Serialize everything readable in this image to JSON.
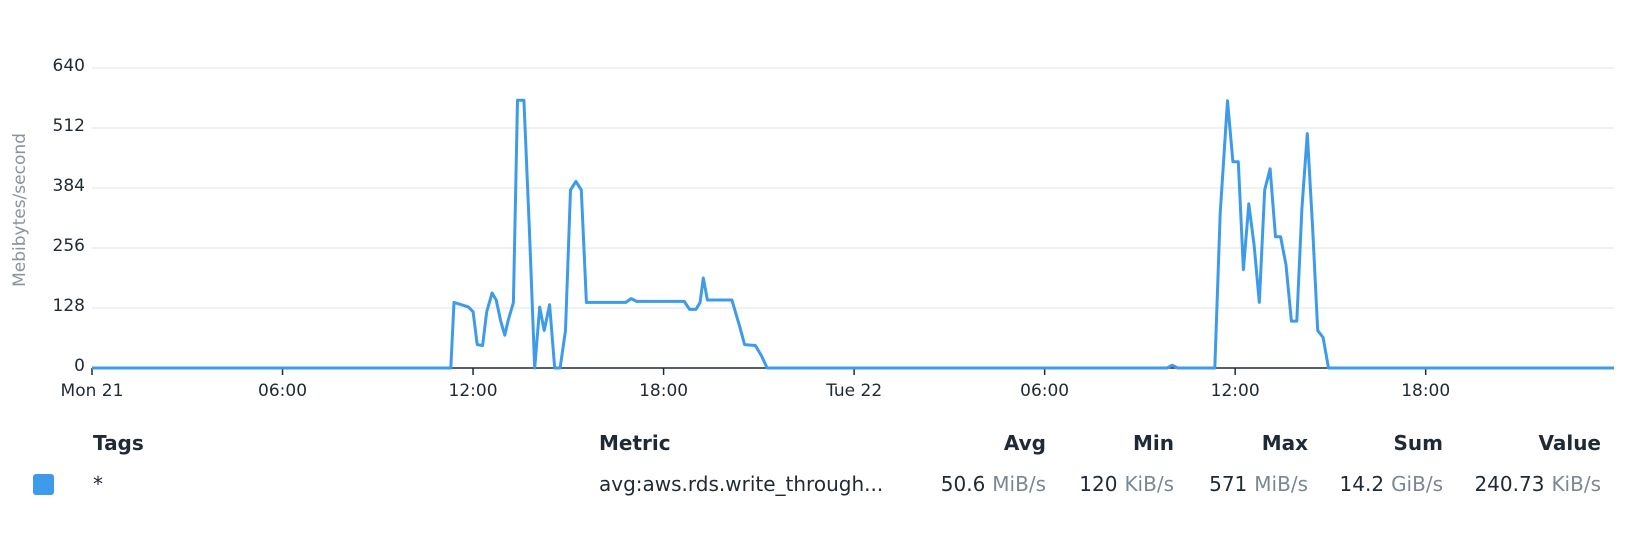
{
  "chart_data": {
    "type": "line",
    "y_label": "Mebibytes/second",
    "color": "#3d9be9",
    "grid": true,
    "ylim": [
      0,
      640
    ],
    "yticks": [
      0,
      128,
      256,
      384,
      512,
      640
    ],
    "xlim": [
      0,
      47.93
    ],
    "xticks": [
      {
        "value": 0,
        "label": "Mon 21"
      },
      {
        "value": 6,
        "label": "06:00"
      },
      {
        "value": 12,
        "label": "12:00"
      },
      {
        "value": 18,
        "label": "18:00"
      },
      {
        "value": 24,
        "label": "Tue 22"
      },
      {
        "value": 30,
        "label": "06:00"
      },
      {
        "value": 36,
        "label": "12:00"
      },
      {
        "value": 42,
        "label": "18:00"
      }
    ],
    "x": [
      0,
      11.3,
      11.4,
      11.63,
      11.86,
      12.0,
      12.13,
      12.3,
      12.43,
      12.6,
      12.73,
      12.87,
      13.0,
      13.1,
      13.27,
      13.4,
      13.6,
      13.77,
      13.94,
      14.1,
      14.24,
      14.41,
      14.57,
      14.74,
      14.91,
      15.07,
      15.24,
      15.41,
      15.57,
      16.81,
      16.98,
      17.15,
      18.65,
      18.82,
      19.02,
      19.15,
      19.25,
      19.38,
      20.15,
      20.39,
      20.55,
      20.89,
      21.09,
      21.26,
      33.86,
      34.02,
      34.19,
      35.36,
      35.53,
      35.76,
      35.93,
      36.1,
      36.26,
      36.43,
      36.6,
      36.76,
      36.93,
      37.1,
      37.27,
      37.43,
      37.6,
      37.77,
      37.94,
      38.1,
      38.27,
      38.44,
      38.6,
      38.77,
      38.94,
      47.93
    ],
    "values": [
      0,
      0,
      140,
      135,
      130,
      120,
      50,
      48,
      120,
      160,
      145,
      100,
      70,
      100,
      140,
      571,
      571,
      300,
      0,
      130,
      80,
      135,
      0,
      0,
      80,
      380,
      398,
      380,
      140,
      140,
      148,
      142,
      142,
      125,
      125,
      140,
      192,
      145,
      145,
      90,
      50,
      48,
      25,
      0,
      0,
      6,
      0,
      0,
      330,
      570,
      440,
      440,
      210,
      350,
      260,
      140,
      380,
      425,
      280,
      280,
      220,
      100,
      100,
      340,
      500,
      300,
      80,
      65,
      0,
      0
    ]
  },
  "legend_table": {
    "headers": {
      "tags": "Tags",
      "metric": "Metric",
      "avg": "Avg",
      "min": "Min",
      "max": "Max",
      "sum": "Sum",
      "value": "Value"
    },
    "row": {
      "tags": "*",
      "metric": "avg:aws.rds.write_through...",
      "avg": {
        "number": 50.6,
        "unit": "MiB/s"
      },
      "min": {
        "number": 120,
        "unit": "KiB/s"
      },
      "max": {
        "number": 571,
        "unit": "MiB/s"
      },
      "sum": {
        "number": 14.2,
        "unit": "GiB/s"
      },
      "value": {
        "number": 240.73,
        "unit": "KiB/s"
      }
    }
  }
}
